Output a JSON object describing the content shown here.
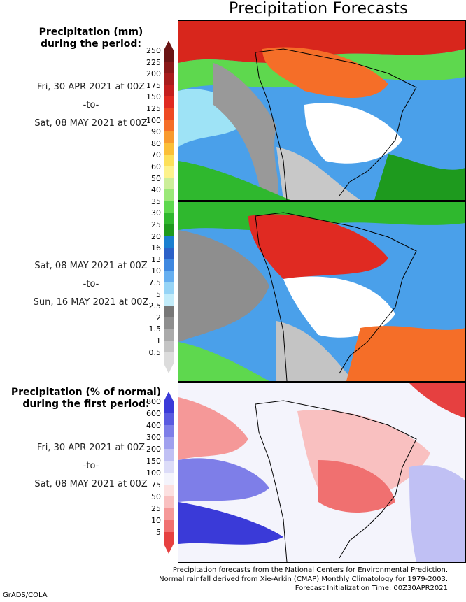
{
  "title": "Precipitation Forecasts",
  "panel_top": {
    "heading_line1": "Precipitation (mm)",
    "heading_line2": "during the period:",
    "start": "Fri, 30 APR 2021 at 00Z",
    "sep": "-to-",
    "end": "Sat, 08 MAY 2021 at 00Z"
  },
  "panel_mid": {
    "start": "Sat, 08 MAY 2021 at 00Z",
    "sep": "-to-",
    "end": "Sun, 16 MAY 2021 at 00Z"
  },
  "panel_bottom": {
    "heading_line1": "Precipitation (% of normal)",
    "heading_line2": "during the first period:",
    "start": "Fri, 30 APR 2021 at 00Z",
    "sep": "-to-",
    "end": "Sat, 08 MAY 2021 at 00Z"
  },
  "mm_scale": {
    "ticks": [
      "250",
      "225",
      "200",
      "175",
      "150",
      "125",
      "100",
      "90",
      "80",
      "70",
      "60",
      "50",
      "40",
      "35",
      "30",
      "25",
      "20",
      "16",
      "13",
      "10",
      "7.5",
      "5",
      "2.5",
      "2",
      "1.5",
      "1",
      "0.5"
    ],
    "colors": [
      "#6b1414",
      "#8a1818",
      "#a81c1c",
      "#c41e1e",
      "#e02a22",
      "#ee4a24",
      "#f56e28",
      "#f89a2e",
      "#fbbf38",
      "#fde05a",
      "#fdf28c",
      "#ccee99",
      "#9ae878",
      "#5ed84e",
      "#2fb82e",
      "#1e9a1e",
      "#1a7fd0",
      "#2b61c8",
      "#3f88e0",
      "#66aff0",
      "#96d4f6",
      "#c2ecfa",
      "#777777",
      "#8e8e8e",
      "#aaaaaa",
      "#c4c4c4",
      "#dcdcdc"
    ]
  },
  "pct_scale": {
    "ticks": [
      "800",
      "600",
      "400",
      "300",
      "200",
      "150",
      "100",
      "75",
      "50",
      "25",
      "10",
      "5"
    ],
    "colors": [
      "#3a3ad8",
      "#5a5ae0",
      "#7e7ee8",
      "#a0a0ee",
      "#c0c0f4",
      "#dcdcf8",
      "#f4f4fc",
      "#fce0e0",
      "#f9c0c0",
      "#f59898",
      "#f07070",
      "#e64040"
    ]
  },
  "footer": {
    "line1": "Precipitation forecasts from the National Centers for Environmental Prediction.",
    "line2": "Normal rainfall derived from Xie-Arkin (CMAP) Monthly Climatology for 1979-2003.",
    "line3": "Forecast Initialization Time: 00Z30APR2021",
    "credit": "GrADS/COLA"
  }
}
